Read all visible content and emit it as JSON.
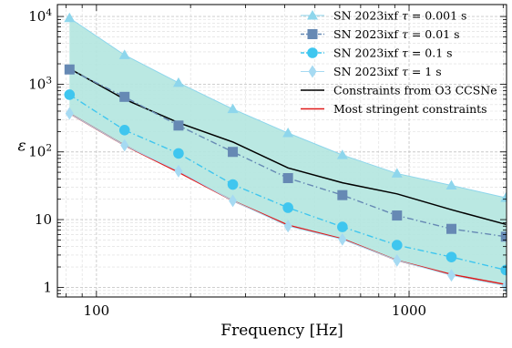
{
  "chart_data": {
    "type": "line",
    "xlabel": "Frequency [Hz]",
    "ylabel": "ε",
    "xscale": "log",
    "yscale": "log",
    "xlim": [
      75,
      2050
    ],
    "ylim": [
      0.72,
      15000
    ],
    "grid": true,
    "legend_position": "top-right",
    "x": [
      82,
      123,
      183,
      273,
      410,
      612,
      915,
      1366,
      2040
    ],
    "x_ticks": [
      {
        "value": 100,
        "label": "100"
      },
      {
        "value": 1000,
        "label": "1000"
      }
    ],
    "y_ticks": [
      {
        "value": 1,
        "label": "1"
      },
      {
        "value": 10,
        "label": "10"
      },
      {
        "value": 100,
        "label": "10²",
        "base": "10",
        "exp": "2"
      },
      {
        "value": 1000,
        "label": "10³",
        "base": "10",
        "exp": "3"
      },
      {
        "value": 10000,
        "label": "10⁴",
        "base": "10",
        "exp": "4"
      }
    ],
    "series": [
      {
        "name": "SN 2023ixf τ = 0.001 s",
        "values": [
          9500,
          2700,
          1050,
          430,
          190,
          90,
          48,
          32,
          21
        ],
        "color": "#8ed6ec",
        "marker": "triangle",
        "linestyle": "solid",
        "linewidth": 1
      },
      {
        "name": "SN 2023ixf τ = 0.01 s",
        "values": [
          1650,
          650,
          245,
          100,
          41,
          23,
          11.5,
          7.3,
          5.6
        ],
        "color": "#6689b4",
        "marker": "square",
        "linestyle": "dashdot",
        "linewidth": 1.4
      },
      {
        "name": "SN 2023ixf τ = 0.1 s",
        "values": [
          700,
          210,
          95,
          33,
          15,
          7.8,
          4.2,
          2.8,
          1.8
        ],
        "color": "#3fc6ef",
        "marker": "circle",
        "linestyle": "dashdot",
        "linewidth": 1.4
      },
      {
        "name": "SN 2023ixf τ = 1 s",
        "values": [
          370,
          125,
          52,
          19,
          8,
          5.1,
          2.5,
          1.5,
          1.05
        ],
        "color": "#a6daf2",
        "marker": "diamond",
        "linestyle": "solid",
        "linewidth": 1
      },
      {
        "name": "Constraints from O3 CCSNe",
        "values": [
          1700,
          600,
          270,
          140,
          58,
          35,
          24,
          14,
          8.5
        ],
        "color": "#000000",
        "marker": "none",
        "linestyle": "solid",
        "linewidth": 1.5
      },
      {
        "name": "Most stringent constraints",
        "values": [
          370,
          125,
          50,
          19,
          8.3,
          5.2,
          2.5,
          1.55,
          1.1
        ],
        "color": "#e01a1a",
        "marker": "none",
        "linestyle": "solid",
        "linewidth": 1.5
      }
    ],
    "fill_between": {
      "upper": "SN 2023ixf τ = 0.001 s",
      "lower": "SN 2023ixf τ = 1 s",
      "color": "#b3e5df"
    },
    "legend_entries": [
      {
        "prefix": "SN 2023ixf ",
        "var": "τ",
        "suffix": " = 0.001 s"
      },
      {
        "prefix": "SN 2023ixf ",
        "var": "τ",
        "suffix": " = 0.01 s"
      },
      {
        "prefix": "SN 2023ixf ",
        "var": "τ",
        "suffix": " = 0.1 s"
      },
      {
        "prefix": "SN 2023ixf ",
        "var": "τ",
        "suffix": " = 1 s"
      },
      {
        "prefix": "Constraints from O3 CCSNe",
        "var": "",
        "suffix": ""
      },
      {
        "prefix": "Most stringent constraints",
        "var": "",
        "suffix": ""
      }
    ]
  }
}
